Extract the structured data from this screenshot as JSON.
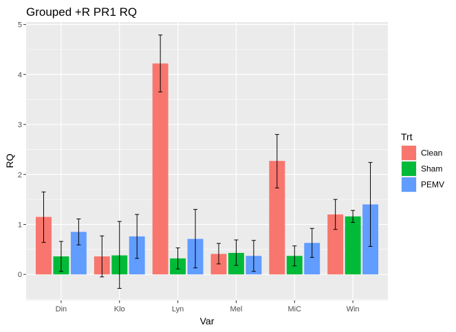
{
  "chart_data": {
    "type": "bar",
    "title": "Grouped +R PR1 RQ",
    "xlabel": "Var",
    "ylabel": "RQ",
    "categories": [
      "Din",
      "Klo",
      "Lyn",
      "Mel",
      "MiC",
      "Win"
    ],
    "ylim": [
      -0.52,
      5.05
    ],
    "yticks": [
      0,
      1,
      2,
      3,
      4,
      5
    ],
    "grid": true,
    "legend": {
      "title": "Trt",
      "position": "right"
    },
    "series": [
      {
        "name": "Clean",
        "color": "#F8766D",
        "values": [
          1.15,
          0.36,
          4.22,
          0.41,
          2.27,
          1.2
        ],
        "error_low": [
          0.64,
          -0.05,
          3.65,
          0.21,
          1.73,
          0.9
        ],
        "error_high": [
          1.65,
          0.77,
          4.79,
          0.62,
          2.8,
          1.5
        ]
      },
      {
        "name": "Sham",
        "color": "#00BA38",
        "values": [
          0.36,
          0.38,
          0.32,
          0.43,
          0.37,
          1.16
        ],
        "error_low": [
          0.06,
          -0.28,
          0.11,
          0.18,
          0.17,
          1.04
        ],
        "error_high": [
          0.66,
          1.06,
          0.53,
          0.69,
          0.57,
          1.28
        ]
      },
      {
        "name": "PEMV",
        "color": "#619CFF",
        "values": [
          0.85,
          0.76,
          0.71,
          0.37,
          0.63,
          1.4
        ],
        "error_low": [
          0.59,
          0.32,
          0.13,
          0.06,
          0.34,
          0.56
        ],
        "error_high": [
          1.11,
          1.2,
          1.3,
          0.68,
          0.92,
          2.24
        ]
      }
    ]
  }
}
